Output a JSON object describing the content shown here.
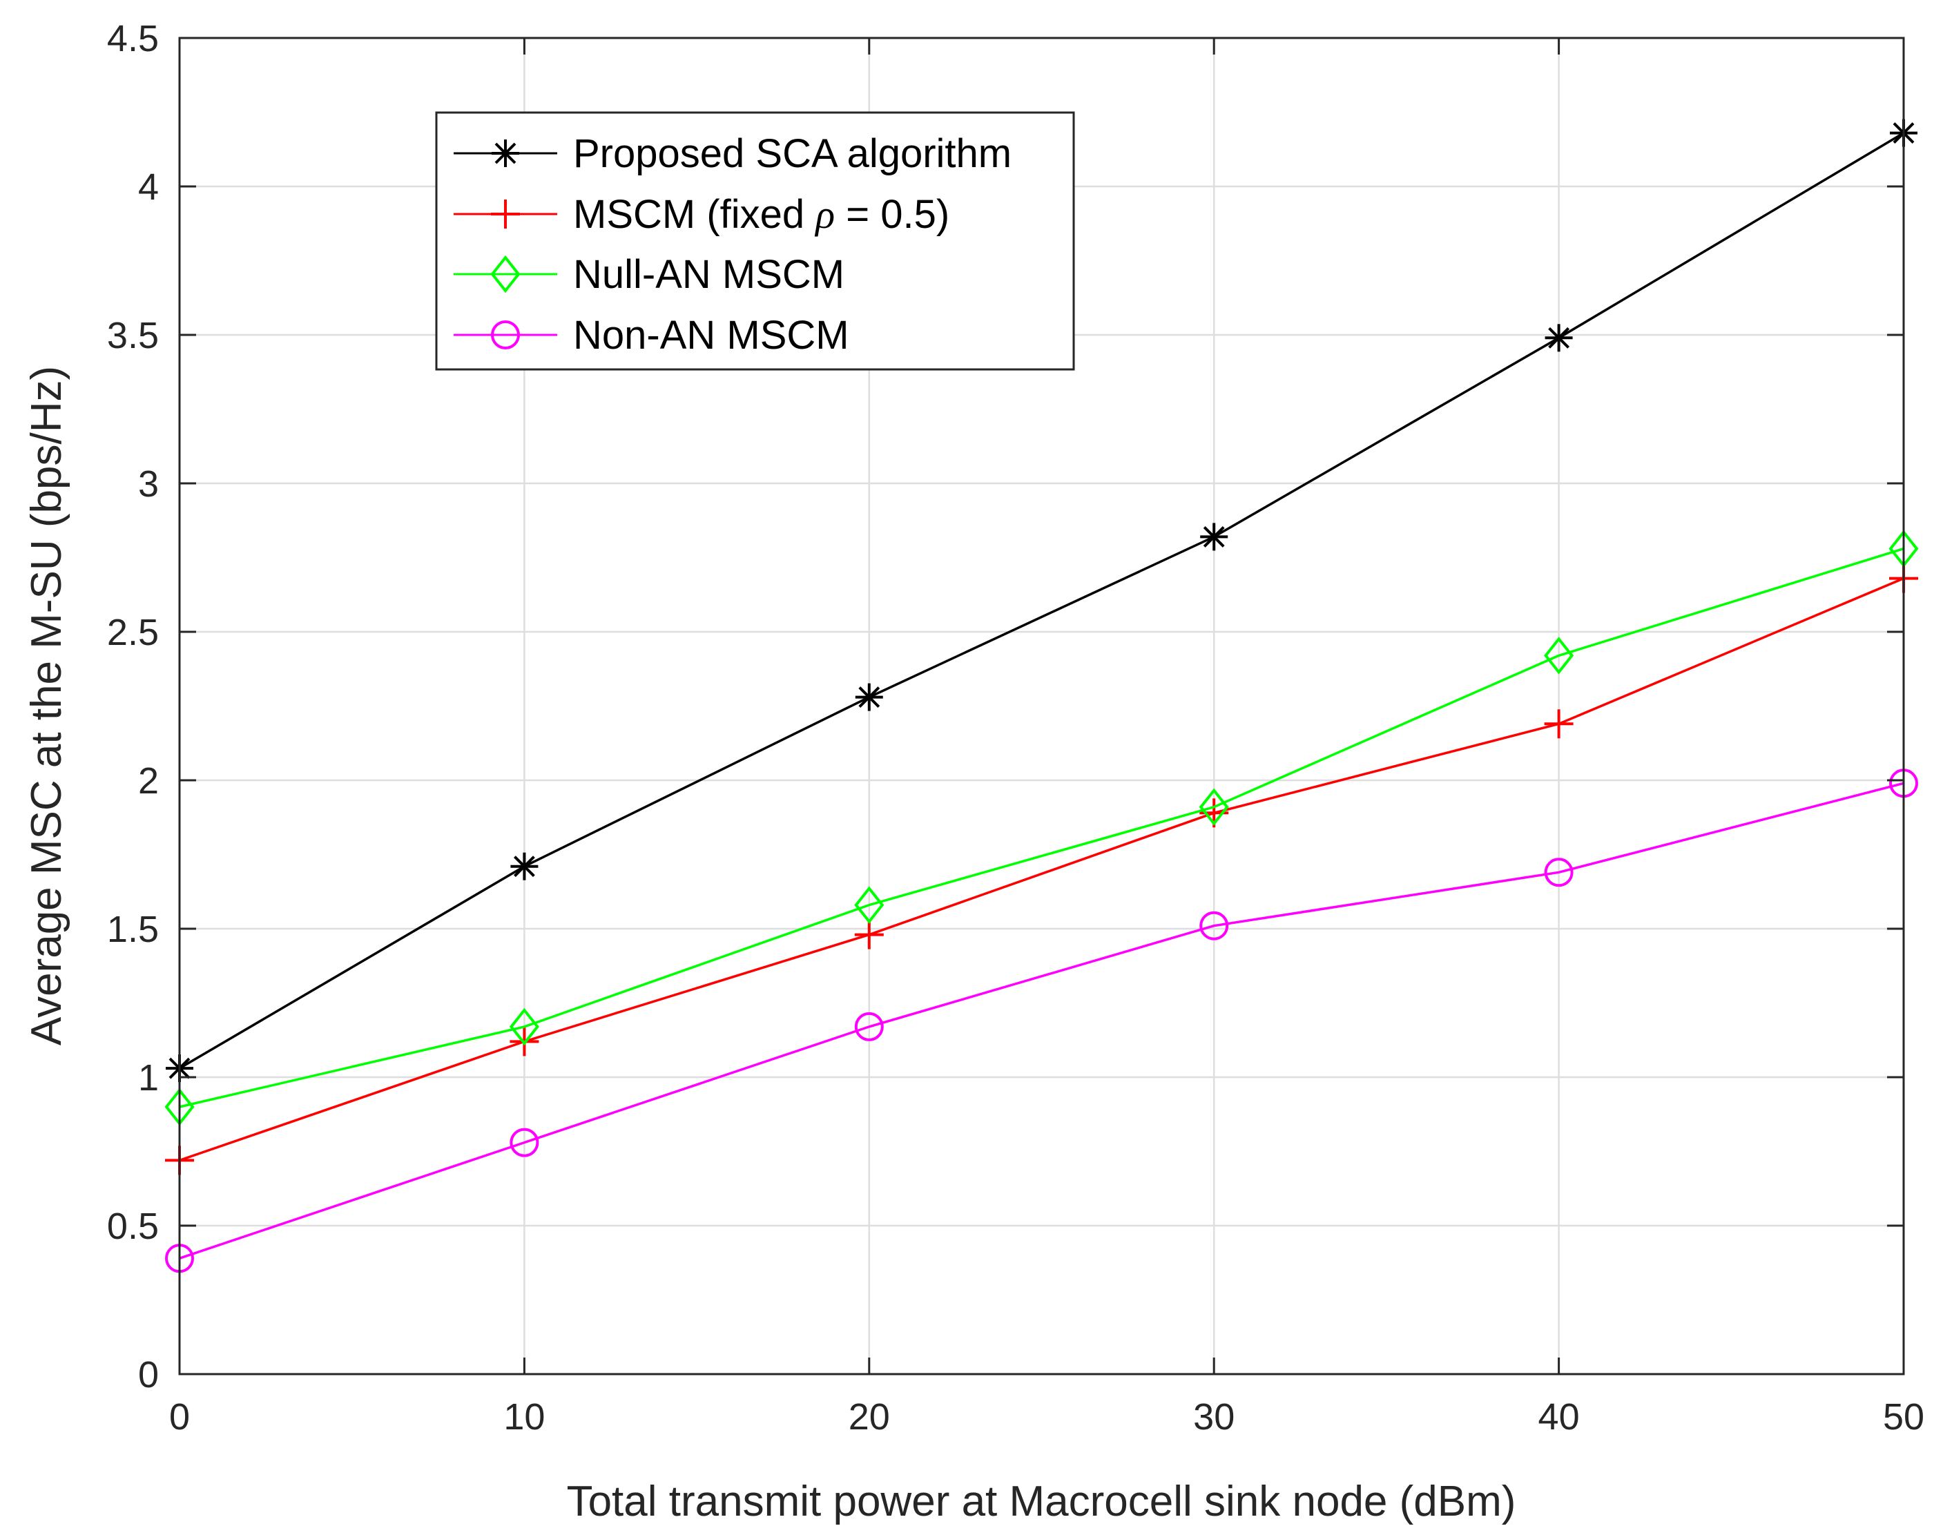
{
  "chart_data": {
    "type": "line",
    "title": "",
    "xlabel": "Total transmit power at Macrocell sink node (dBm)",
    "ylabel": "Average MSC at the  M-SU (bps/Hz)",
    "x": [
      0,
      10,
      20,
      30,
      40,
      50
    ],
    "xlim": [
      0,
      50
    ],
    "ylim": [
      0,
      4.5
    ],
    "xticks": [
      "0",
      "10",
      "20",
      "30",
      "40",
      "50"
    ],
    "yticks": [
      "0",
      "0.5",
      "1",
      "1.5",
      "2",
      "2.5",
      "3",
      "3.5",
      "4",
      "4.5"
    ],
    "grid": true,
    "legend_position": "top-left",
    "series": [
      {
        "name": "Proposed SCA algorithm",
        "values": [
          1.03,
          1.71,
          2.28,
          2.82,
          3.49,
          4.18
        ],
        "color": "#000000",
        "marker": "asterisk"
      },
      {
        "name": "MSCM (fixed",
        "name_symbol": "ρ",
        "name_suffix": " = 0.5)",
        "values": [
          0.72,
          1.12,
          1.48,
          1.89,
          2.19,
          2.68
        ],
        "color": "#ff0000",
        "marker": "plus"
      },
      {
        "name": "Null-AN MSCM",
        "values": [
          0.9,
          1.17,
          1.58,
          1.91,
          2.42,
          2.78
        ],
        "color": "#00ff00",
        "marker": "diamond"
      },
      {
        "name": "Non-AN MSCM",
        "values": [
          0.39,
          0.78,
          1.17,
          1.51,
          1.69,
          1.99
        ],
        "color": "#ff00ff",
        "marker": "circle"
      }
    ]
  }
}
